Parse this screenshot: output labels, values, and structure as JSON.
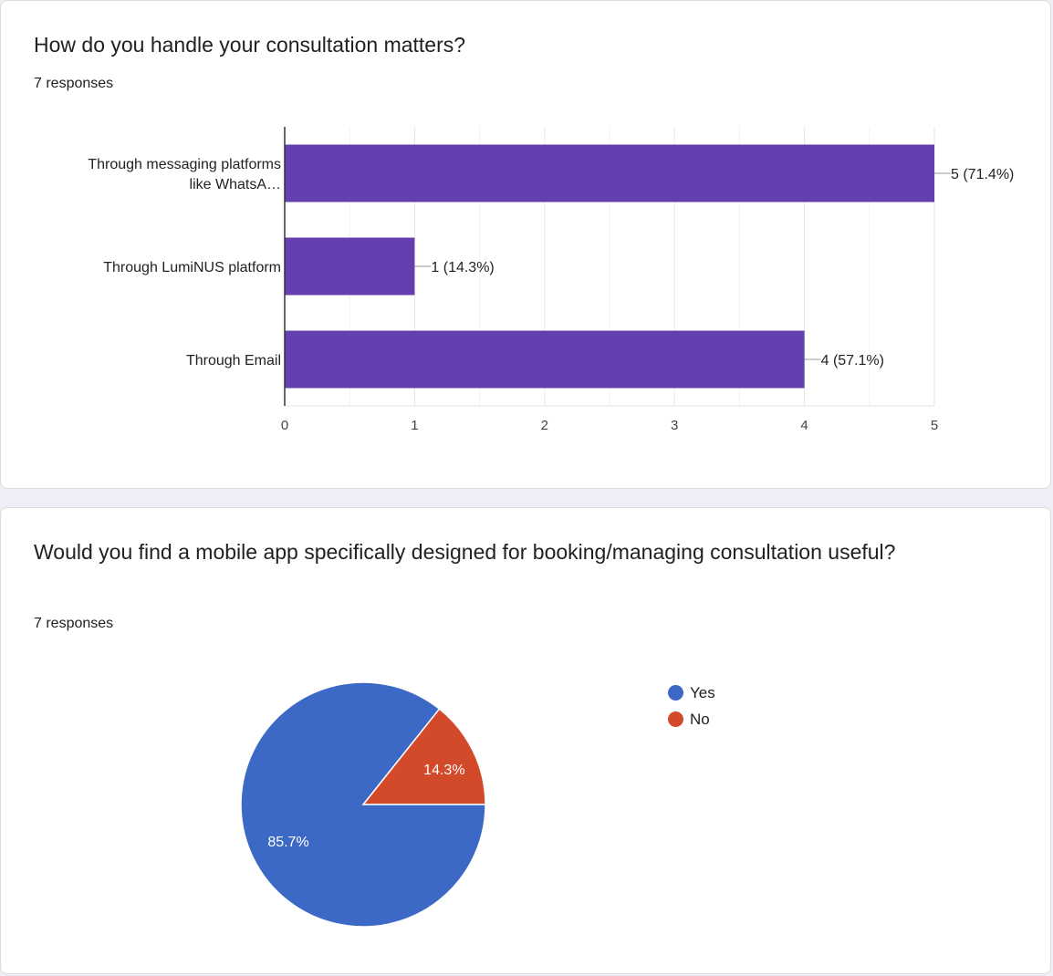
{
  "questions": [
    {
      "title": "How do you handle your consultation matters?",
      "responses": "7 responses"
    },
    {
      "title": "Would you find a mobile app specifically designed for booking/managing consultation useful?",
      "responses": "7 responses"
    }
  ],
  "chart_data": [
    {
      "type": "bar",
      "orientation": "horizontal",
      "categories": [
        [
          "Through messaging platforms",
          "like WhatsA…"
        ],
        [
          "Through LumiNUS platform"
        ],
        [
          "Through Email"
        ]
      ],
      "values": [
        5,
        1,
        4
      ],
      "data_labels": [
        "5 (71.4%)",
        "1 (14.3%)",
        "4 (57.1%)"
      ],
      "xlim": [
        0,
        5
      ],
      "xticks": [
        "0",
        "1",
        "2",
        "3",
        "4",
        "5"
      ],
      "grid": true,
      "colors": {
        "bar": "#6240b0"
      }
    },
    {
      "type": "pie",
      "slices": [
        {
          "label": "Yes",
          "value": 85.7,
          "display": "85.7%",
          "color": "#3d69c6"
        },
        {
          "label": "No",
          "value": 14.3,
          "display": "14.3%",
          "color": "#d24a2a"
        }
      ],
      "legend_position": "right"
    }
  ]
}
